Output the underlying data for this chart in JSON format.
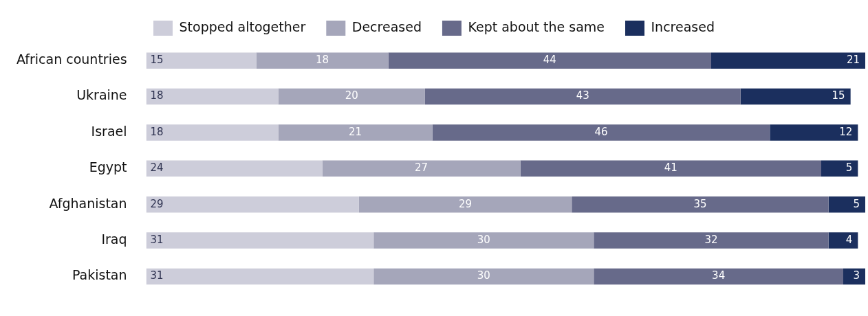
{
  "chart_data": {
    "type": "bar",
    "orientation": "horizontal",
    "stacked": true,
    "data_labels": true,
    "legend": "top",
    "grid": false,
    "tick_labels": "y",
    "categories": [
      "African countries",
      "Ukraine",
      "Israel",
      "Egypt",
      "Afghanistan",
      "Iraq",
      "Pakistan"
    ],
    "series": [
      {
        "name": "Stopped altogether",
        "color": "#cdcdda",
        "values": [
          15,
          18,
          18,
          24,
          29,
          31,
          31
        ]
      },
      {
        "name": "Decreased",
        "color": "#a5a6ba",
        "values": [
          18,
          20,
          21,
          27,
          29,
          30,
          30
        ]
      },
      {
        "name": "Kept about the same",
        "color": "#676a8a",
        "values": [
          44,
          43,
          46,
          41,
          35,
          32,
          34
        ]
      },
      {
        "name": "Increased",
        "color": "#1b2f5e",
        "values": [
          21,
          15,
          12,
          5,
          5,
          4,
          3
        ]
      }
    ]
  }
}
